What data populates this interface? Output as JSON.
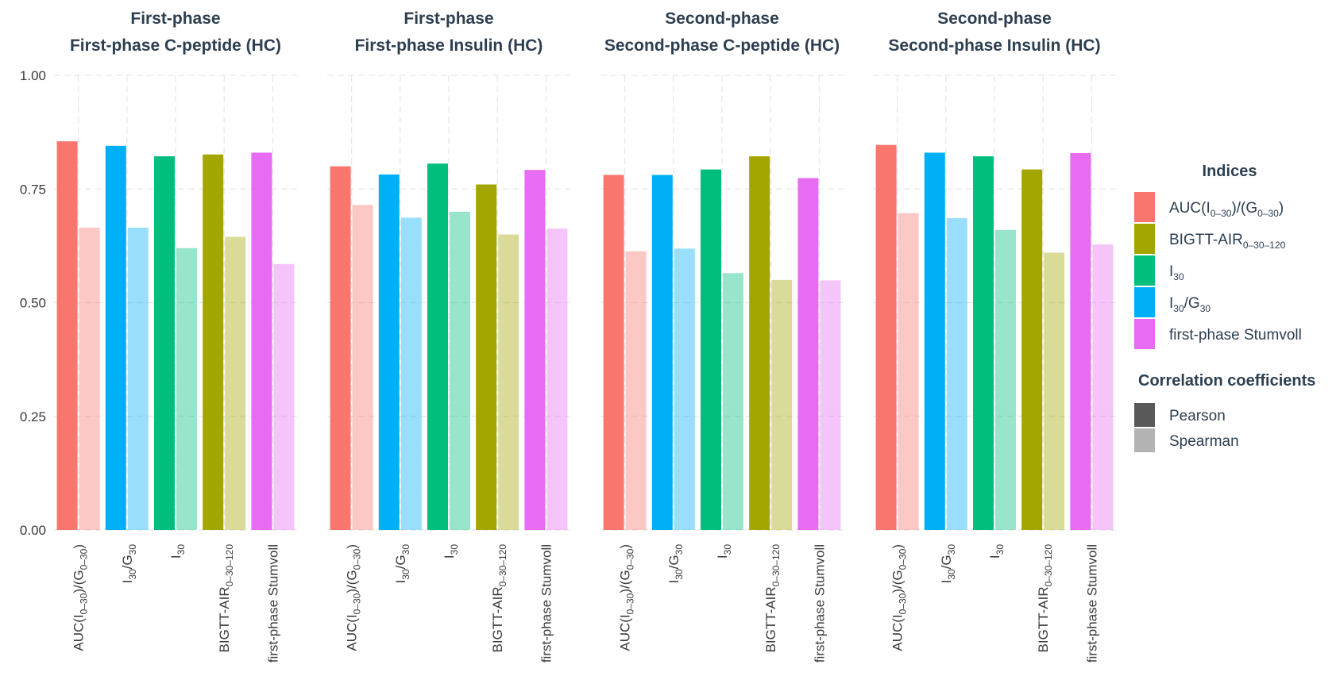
{
  "chart_data": {
    "type": "bar",
    "ylim": [
      0,
      1
    ],
    "y_ticks": [
      "0.00",
      "0.25",
      "0.50",
      "0.75",
      "1.00"
    ],
    "y_tick_values": [
      0,
      0.25,
      0.5,
      0.75,
      1.0
    ],
    "grid": true,
    "categories": [
      {
        "main": "AUC(I",
        "sub": "0–30",
        "main2": ")/(G",
        "sub2": "0–30",
        "main3": ")"
      },
      {
        "main": "I",
        "sub": "30",
        "main2": "/G",
        "sub2": "30",
        "main3": ""
      },
      {
        "main": "I",
        "sub": "30",
        "main2": "",
        "sub2": "",
        "main3": ""
      },
      {
        "main": "BIGTT-AIR",
        "sub": "0–30–120",
        "main2": "",
        "sub2": "",
        "main3": ""
      },
      {
        "main": "first-phase Stumvoll",
        "sub": "",
        "main2": "",
        "sub2": "",
        "main3": ""
      }
    ],
    "category_colors": [
      "#F8766D",
      "#00B0F6",
      "#00BF7D",
      "#A3A500",
      "#E76BF3"
    ],
    "series_opacity": {
      "Pearson": 1.0,
      "Spearman": 0.4
    },
    "panels": [
      {
        "title_line1": "First-phase",
        "title_line2": "First-phase C-peptide (HC)",
        "pearson": [
          0.855,
          0.845,
          0.822,
          0.826,
          0.83
        ],
        "spearman": [
          0.665,
          0.665,
          0.62,
          0.645,
          0.585
        ]
      },
      {
        "title_line1": "First-phase",
        "title_line2": "First-phase Insulin (HC)",
        "pearson": [
          0.8,
          0.782,
          0.806,
          0.76,
          0.792
        ],
        "spearman": [
          0.715,
          0.687,
          0.7,
          0.65,
          0.663
        ]
      },
      {
        "title_line1": "Second-phase",
        "title_line2": "Second-phase C-peptide (HC)",
        "pearson": [
          0.781,
          0.781,
          0.793,
          0.822,
          0.774
        ],
        "spearman": [
          0.613,
          0.619,
          0.565,
          0.55,
          0.549
        ]
      },
      {
        "title_line1": "Second-phase",
        "title_line2": "Second-phase Insulin (HC)",
        "pearson": [
          0.847,
          0.83,
          0.822,
          0.793,
          0.829
        ],
        "spearman": [
          0.697,
          0.686,
          0.66,
          0.61,
          0.628
        ]
      }
    ],
    "legend": {
      "position": "right",
      "indices_title": "Indices",
      "indices": [
        {
          "main": "AUC(I",
          "sub": "0–30",
          "main2": ")/(G",
          "sub2": "0–30",
          "main3": ")",
          "color": "#F8766D"
        },
        {
          "main": "BIGTT-AIR",
          "sub": "0–30–120",
          "main2": "",
          "sub2": "",
          "main3": "",
          "color": "#A3A500"
        },
        {
          "main": "I",
          "sub": "30",
          "main2": "",
          "sub2": "",
          "main3": "",
          "color": "#00BF7D"
        },
        {
          "main": "I",
          "sub": "30",
          "main2": "/G",
          "sub2": "30",
          "main3": "",
          "color": "#00B0F6"
        },
        {
          "main": "first-phase Stumvoll",
          "sub": "",
          "main2": "",
          "sub2": "",
          "main3": "",
          "color": "#E76BF3"
        }
      ],
      "corr_title": "Correlation coefficients",
      "corr": [
        {
          "label": "Pearson",
          "color": "#595959"
        },
        {
          "label": "Spearman",
          "color": "#b3b3b3"
        }
      ]
    }
  }
}
